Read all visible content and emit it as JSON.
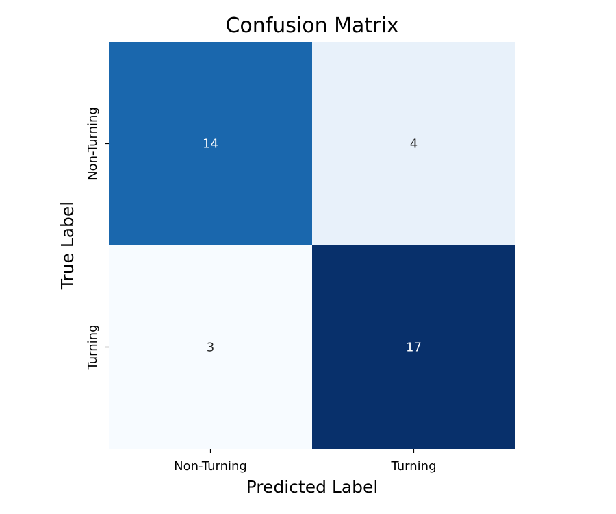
{
  "chart_data": {
    "type": "heatmap",
    "title": "Confusion Matrix",
    "xlabel": "Predicted Label",
    "ylabel": "True Label",
    "x_categories": [
      "Non-Turning",
      "Turning"
    ],
    "y_categories": [
      "Non-Turning",
      "Turning"
    ],
    "values": [
      [
        14,
        4
      ],
      [
        3,
        17
      ]
    ],
    "colormap": "Blues",
    "color_range": [
      3,
      17
    ],
    "colors": {
      "cells": [
        [
          "#1a67ad",
          "#e8f1fa"
        ],
        [
          "#f7fbff",
          "#08306b"
        ]
      ],
      "light_text": "#ffffff",
      "dark_text": "#262626"
    },
    "colorbar": false,
    "grid": false
  }
}
